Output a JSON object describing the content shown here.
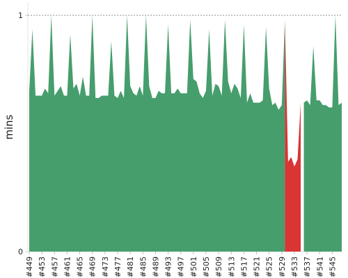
{
  "chart_data": {
    "type": "area",
    "ylabel": "mins",
    "ylim": [
      0,
      1
    ],
    "y_ticks": [
      "0",
      "1"
    ],
    "reference_line": {
      "value": 1,
      "style": "dotted"
    },
    "x_tick_labels": [
      "#449",
      "#453",
      "#457",
      "#461",
      "#465",
      "#469",
      "#473",
      "#477",
      "#481",
      "#485",
      "#489",
      "#493",
      "#497",
      "#501",
      "#505",
      "#509",
      "#513",
      "#517",
      "#521",
      "#525",
      "#529",
      "#533",
      "#537",
      "#541",
      "#545"
    ],
    "builds": [
      449,
      450,
      451,
      452,
      453,
      454,
      455,
      456,
      457,
      458,
      459,
      460,
      461,
      462,
      463,
      464,
      465,
      466,
      467,
      468,
      469,
      470,
      471,
      472,
      473,
      474,
      475,
      476,
      477,
      478,
      479,
      480,
      481,
      482,
      483,
      484,
      485,
      486,
      487,
      488,
      489,
      490,
      491,
      492,
      493,
      494,
      495,
      496,
      497,
      498,
      499,
      500,
      501,
      502,
      503,
      504,
      505,
      506,
      507,
      508,
      509,
      510,
      511,
      512,
      513,
      514,
      515,
      516,
      517,
      518,
      519,
      520,
      521,
      522,
      523,
      524,
      525,
      526,
      527,
      528,
      529,
      530,
      531,
      532,
      533,
      534,
      535,
      536,
      537,
      538,
      539,
      540,
      541,
      542,
      543,
      544,
      545,
      546,
      547,
      548
    ],
    "series": [
      {
        "status": "success",
        "color": "#469e6d",
        "values": [
          0.68,
          0.94,
          0.66,
          0.66,
          0.66,
          0.69,
          0.67,
          1.0,
          0.66,
          0.68,
          0.7,
          0.66,
          0.66,
          0.92,
          0.69,
          0.71,
          0.66,
          0.74,
          0.66,
          0.66,
          1.0,
          0.65,
          0.65,
          0.66,
          0.66,
          0.66,
          0.89,
          0.66,
          0.65,
          0.68,
          0.65,
          1.0,
          0.7,
          0.67,
          0.66,
          0.7,
          0.66,
          1.0,
          0.7,
          0.65,
          0.65,
          0.68,
          0.67,
          0.67,
          0.96,
          0.67,
          0.67,
          0.69,
          0.67,
          0.67,
          0.67,
          0.98,
          0.73,
          0.72,
          0.67,
          0.65,
          0.68,
          0.94,
          0.66,
          0.71,
          0.7,
          0.66,
          0.98,
          0.72,
          0.67,
          0.71,
          0.69,
          0.65,
          0.96,
          0.63,
          0.67,
          0.63,
          0.63,
          0.63,
          0.64,
          0.95,
          0.69,
          0.62,
          0.63,
          0.6,
          0.62,
          0.98,
          null,
          null,
          null,
          null,
          null,
          0.63,
          0.64,
          0.62,
          0.87,
          0.64,
          0.64,
          0.62,
          0.62,
          0.61,
          0.61,
          1.0,
          0.62,
          0.63
        ]
      },
      {
        "status": "failure",
        "color": "#d93535",
        "values": [
          null,
          null,
          null,
          null,
          null,
          null,
          null,
          null,
          null,
          null,
          null,
          null,
          null,
          null,
          null,
          null,
          null,
          null,
          null,
          null,
          null,
          null,
          null,
          null,
          null,
          null,
          null,
          null,
          null,
          null,
          null,
          null,
          null,
          null,
          null,
          null,
          null,
          null,
          null,
          null,
          null,
          null,
          null,
          null,
          null,
          null,
          null,
          null,
          null,
          null,
          null,
          null,
          null,
          null,
          null,
          null,
          null,
          null,
          null,
          null,
          null,
          null,
          null,
          null,
          null,
          null,
          null,
          null,
          null,
          null,
          null,
          null,
          null,
          null,
          null,
          null,
          null,
          null,
          null,
          null,
          null,
          0.98,
          0.38,
          0.4,
          0.36,
          0.39,
          0.63,
          null,
          null,
          null,
          null,
          null,
          null,
          null,
          null,
          null,
          null,
          null,
          null,
          null
        ]
      }
    ]
  }
}
